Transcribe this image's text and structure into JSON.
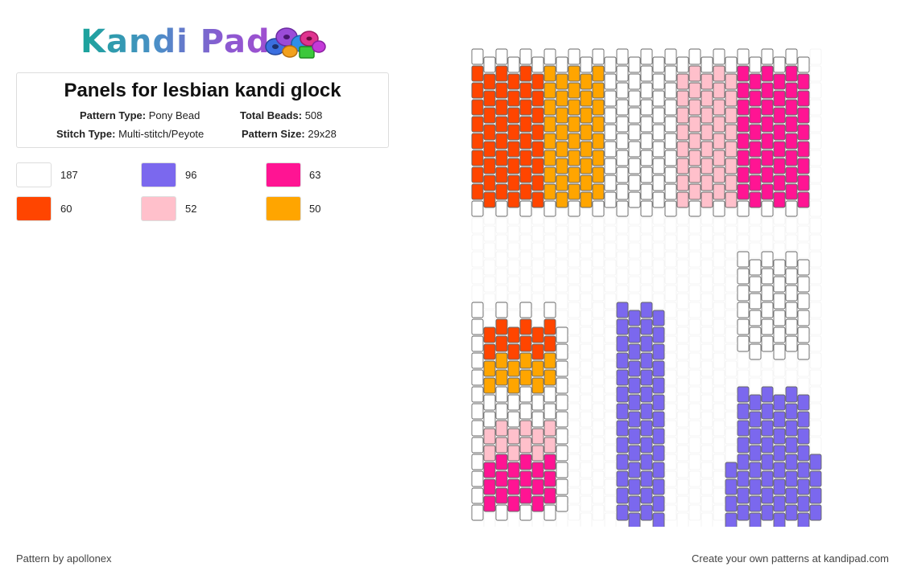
{
  "brand": {
    "name": "Kandi Pad"
  },
  "pattern": {
    "title": "Panels for lesbian kandi glock",
    "type_label": "Pattern Type:",
    "type_value": "Pony Bead",
    "beads_label": "Total Beads:",
    "beads_value": "508",
    "stitch_label": "Stitch Type:",
    "stitch_value": "Multi-stitch/Peyote",
    "size_label": "Pattern Size:",
    "size_value": "29x28"
  },
  "palette": [
    {
      "color": "#ffffff",
      "count": "187"
    },
    {
      "color": "#7b68ee",
      "count": "96"
    },
    {
      "color": "#ff1493",
      "count": "63"
    },
    {
      "color": "#ff4500",
      "count": "60"
    },
    {
      "color": "#ffc0cb",
      "count": "52"
    },
    {
      "color": "#ffa500",
      "count": "50"
    }
  ],
  "footer": {
    "author": "Pattern by apollonex",
    "cta": "Create your own patterns at kandipad.com"
  }
}
